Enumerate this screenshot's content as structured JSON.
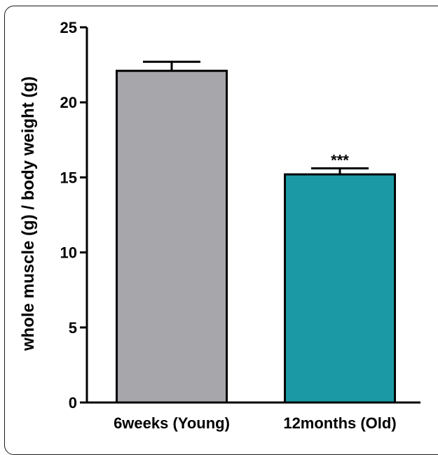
{
  "chart_data": {
    "type": "bar",
    "title": "",
    "xlabel": "",
    "ylabel": "whole muscle (g) / body weight (g)",
    "ylim": [
      0,
      25
    ],
    "yticks": [
      0,
      5,
      10,
      15,
      20,
      25
    ],
    "categories": [
      "6weeks (Young)",
      "12months (Old)"
    ],
    "values": [
      22.1,
      15.2
    ],
    "errors": [
      0.6,
      0.4
    ],
    "annotations": [
      "",
      "***"
    ],
    "colors": [
      "#a7a6aa",
      "#1b9aa5"
    ],
    "grid": false,
    "legend": "none"
  }
}
